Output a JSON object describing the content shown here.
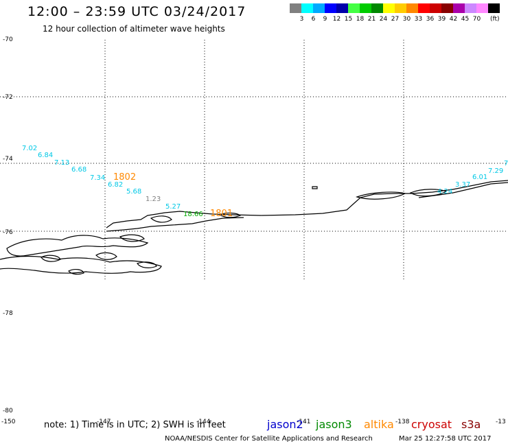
{
  "header": {
    "title": "12:00 – 23:59 UTC 03/24/2017",
    "subtitle": "12 hour collection of altimeter wave heights"
  },
  "colorbar": {
    "colors": [
      "#808080",
      "#00ffff",
      "#00aaff",
      "#0000ff",
      "#0000aa",
      "#44ff44",
      "#00cc00",
      "#008800",
      "#ffff00",
      "#ffcc00",
      "#ff8800",
      "#ff0000",
      "#cc0000",
      "#880000",
      "#aa00aa",
      "#cc88ff",
      "#ff88ff",
      "#000000"
    ],
    "labels": [
      "3",
      "6",
      "9",
      "12",
      "15",
      "18",
      "21",
      "24",
      "27",
      "30",
      "33",
      "36",
      "39",
      "42",
      "45",
      "70"
    ],
    "unit": "(ft)"
  },
  "map": {
    "lat_labels": [
      "-70",
      "-72",
      "-74",
      "-76",
      "-78",
      "-80"
    ],
    "lon_labels": [
      "-150",
      "-147",
      "-144",
      "-141",
      "-138",
      "-13"
    ],
    "wave_heights": [
      {
        "text": "7.02",
        "color": "#00c8e6"
      },
      {
        "text": "6.84",
        "color": "#00c8e6"
      },
      {
        "text": "7.13",
        "color": "#00c8e6"
      },
      {
        "text": "6.68",
        "color": "#00c8e6"
      },
      {
        "text": "7.34",
        "color": "#00c8e6"
      },
      {
        "text": "1802",
        "color": "#ff8800"
      },
      {
        "text": "6.82",
        "color": "#00c8e6"
      },
      {
        "text": "5.68",
        "color": "#00c8e6"
      },
      {
        "text": "1.23",
        "color": "#808080"
      },
      {
        "text": "5.27",
        "color": "#00c8e6"
      },
      {
        "text": "18.66",
        "color": "#00aa00"
      },
      {
        "text": "1801",
        "color": "#ff8800"
      },
      {
        "text": "4.24",
        "color": "#00c8e6"
      },
      {
        "text": "3.37",
        "color": "#00c8e6"
      },
      {
        "text": "6.01",
        "color": "#00c8e6"
      },
      {
        "text": "7.29",
        "color": "#00c8e6"
      },
      {
        "text": "7",
        "color": "#00c8e6"
      }
    ]
  },
  "footer": {
    "note": "note: 1) Time is in UTC; 2) SWH is in feet",
    "satellites": [
      {
        "name": "jason2",
        "color": "#0000cc"
      },
      {
        "name": "jason3",
        "color": "#008800"
      },
      {
        "name": "altika",
        "color": "#ff8800"
      },
      {
        "name": "cryosat",
        "color": "#cc0000"
      },
      {
        "name": "s3a",
        "color": "#880000"
      }
    ],
    "credit": "NOAA/NESDIS Center for Satellite Applications and Research",
    "timestamp": "Mar 25 12:27:58 UTC 2017"
  }
}
